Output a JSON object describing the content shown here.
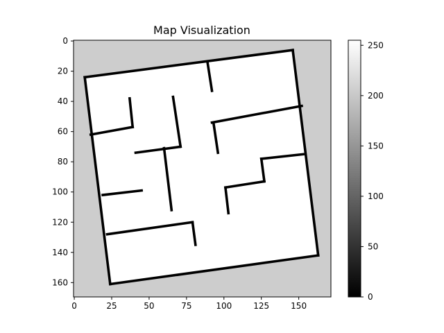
{
  "chart_data": {
    "type": "heatmap",
    "title": "Map Visualization",
    "xlabel": "",
    "ylabel": "",
    "x_ticks": [
      0,
      25,
      50,
      75,
      100,
      125,
      150
    ],
    "y_ticks": [
      0,
      20,
      40,
      60,
      80,
      100,
      120,
      140,
      160
    ],
    "xlim": [
      -0.5,
      171.5
    ],
    "ylim": [
      169.5,
      -0.5
    ],
    "grid": false,
    "colormap": "gray",
    "colorbar": {
      "range": [
        0,
        255
      ],
      "ticks": [
        0,
        50,
        100,
        150,
        200,
        250
      ]
    },
    "background_value": 205,
    "free_value": 255,
    "wall_value": 0,
    "room_corners": [
      [
        7,
        24
      ],
      [
        146,
        6
      ],
      [
        163,
        142
      ],
      [
        24,
        161
      ]
    ],
    "walls": [
      [
        7,
        24,
        146,
        6
      ],
      [
        146,
        6,
        163,
        142
      ],
      [
        163,
        142,
        24,
        161
      ],
      [
        24,
        161,
        7,
        24
      ],
      [
        89,
        14,
        92,
        33
      ],
      [
        37,
        38,
        39,
        57
      ],
      [
        39,
        57,
        11,
        62
      ],
      [
        66,
        37,
        71,
        70
      ],
      [
        71,
        70,
        41,
        74
      ],
      [
        60,
        71,
        65,
        112
      ],
      [
        92,
        54,
        152,
        43
      ],
      [
        93,
        54,
        96,
        74
      ],
      [
        125,
        78,
        153,
        75
      ],
      [
        125,
        78,
        127,
        93
      ],
      [
        127,
        93,
        101,
        97
      ],
      [
        101,
        97,
        103,
        114
      ],
      [
        19,
        102,
        45,
        99
      ],
      [
        22,
        128,
        79,
        120
      ],
      [
        79,
        120,
        81,
        135
      ]
    ],
    "colors": {
      "background": "#cdcdcd",
      "free": "#ffffff",
      "wall": "#000000"
    }
  }
}
